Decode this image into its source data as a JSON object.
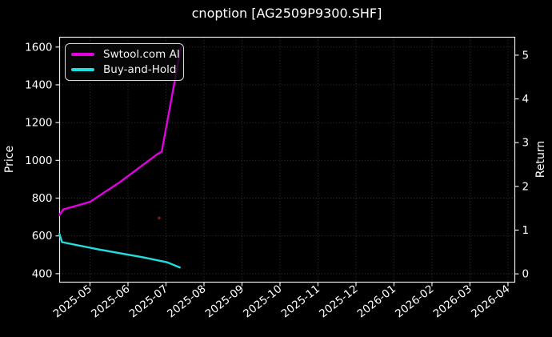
{
  "title": "cnoption [AG2509P9300.SHF]",
  "axes": {
    "left_label": "Price",
    "right_label": "Return"
  },
  "legend": {
    "items": [
      {
        "label": "Swtool.com AI",
        "color": "#e100e1"
      },
      {
        "label": "Buy-and-Hold",
        "color": "#22dede"
      }
    ]
  },
  "colors": {
    "background": "#000000",
    "text": "#ffffff",
    "grid": "#3c3c3c",
    "spine": "#e9e9e9",
    "magenta": "#e100e1",
    "cyan": "#22dede",
    "marker_red": "#8b1515"
  },
  "chart_data": {
    "type": "line",
    "title": "cnoption [AG2509P9300.SHF]",
    "xlabel": "",
    "ylabel_left": "Price",
    "ylabel_right": "Return",
    "x_tick_labels": [
      "2025-05",
      "2025-06",
      "2025-07",
      "2025-08",
      "2025-09",
      "2025-10",
      "2025-11",
      "2025-12",
      "2026-01",
      "2026-02",
      "2026-03",
      "2026-04"
    ],
    "y_left_ticks": [
      400,
      600,
      800,
      1000,
      1200,
      1400,
      1600
    ],
    "y_right_ticks": [
      0,
      1,
      2,
      3,
      4,
      5
    ],
    "xlim_months_from_2025_05": [
      -0.8,
      11.18
    ],
    "ylim_left": [
      355,
      1652
    ],
    "ylim_right": [
      -0.19,
      5.41
    ],
    "grid": true,
    "grid_style": "dotted",
    "legend_position": "upper left",
    "series": [
      {
        "name": "Swtool.com AI",
        "color": "#e100e1",
        "axis": "left",
        "points": [
          [
            "2025-04-07",
            710
          ],
          [
            "2025-04-10",
            740
          ],
          [
            "2025-05-01",
            780
          ],
          [
            "2025-05-25",
            885
          ],
          [
            "2025-06-25",
            1035
          ],
          [
            "2025-06-28",
            1045
          ],
          [
            "2025-07-13",
            1600
          ]
        ]
      },
      {
        "name": "Buy-and-Hold",
        "color": "#22dede",
        "axis": "left",
        "points": [
          [
            "2025-04-07",
            610
          ],
          [
            "2025-04-09",
            567
          ],
          [
            "2025-05-09",
            527
          ],
          [
            "2025-06-13",
            487
          ],
          [
            "2025-07-02",
            460
          ],
          [
            "2025-07-12",
            433
          ]
        ]
      }
    ],
    "markers": [
      {
        "date": "2025-06-26",
        "value": 695,
        "color": "#8b1515",
        "shape": "dot"
      }
    ]
  }
}
